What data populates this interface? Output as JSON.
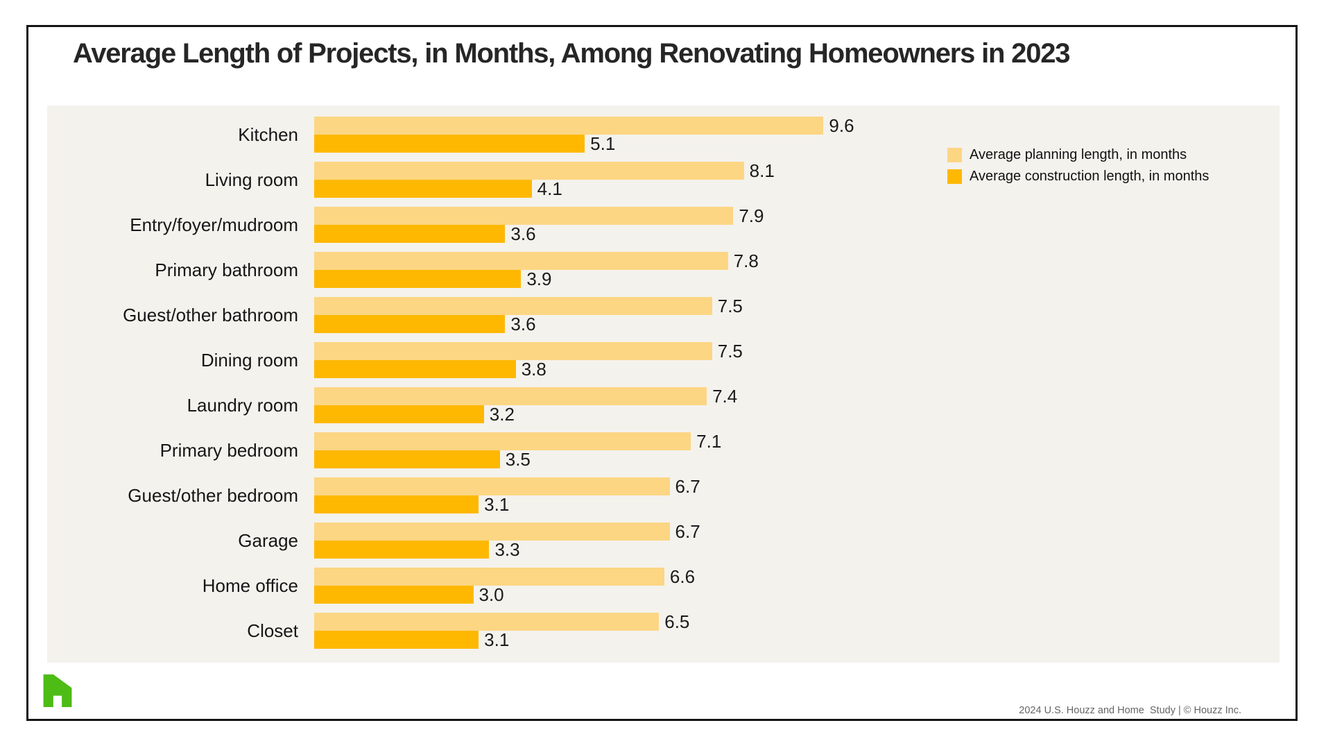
{
  "title": "Average Length of Projects, in Months, Among Renovating Homeowners in 2023",
  "chart_data": {
    "type": "bar",
    "orientation": "horizontal",
    "title": "Average Length of Projects, in Months, Among Renovating Homeowners in 2023",
    "categories": [
      "Kitchen",
      "Living room",
      "Entry/foyer/mudroom",
      "Primary bathroom",
      "Guest/other bathroom",
      "Dining room",
      "Laundry room",
      "Primary bedroom",
      "Guest/other bedroom",
      "Garage",
      "Home office",
      "Closet"
    ],
    "series": [
      {
        "name": "Average planning length, in months",
        "color": "#FCD683",
        "values": [
          9.6,
          8.1,
          7.9,
          7.8,
          7.5,
          7.5,
          7.4,
          7.1,
          6.7,
          6.7,
          6.6,
          6.5
        ]
      },
      {
        "name": "Average construction length, in months",
        "color": "#FEB802",
        "values": [
          5.1,
          4.1,
          3.6,
          3.9,
          3.6,
          3.8,
          3.2,
          3.5,
          3.1,
          3.3,
          3.0,
          3.1
        ]
      }
    ],
    "xlabel": "",
    "ylabel": "",
    "xlim": [
      0,
      18.2
    ],
    "grid": false,
    "value_labels": true,
    "value_label_format": "0.0",
    "legend_position": "top-right"
  },
  "footer": {
    "credit": "2024 U.S. Houzz and Home  Study | © Houzz Inc."
  },
  "branding": {
    "logo": "houzz-h-house-icon",
    "logo_color": "#4DBC15"
  },
  "colors": {
    "card_bg": "#FFFFFF",
    "panel_bg": "#F4F2ED",
    "border": "#141414",
    "title_text": "#262626",
    "label_text": "#161616",
    "footer_text": "#666666"
  }
}
